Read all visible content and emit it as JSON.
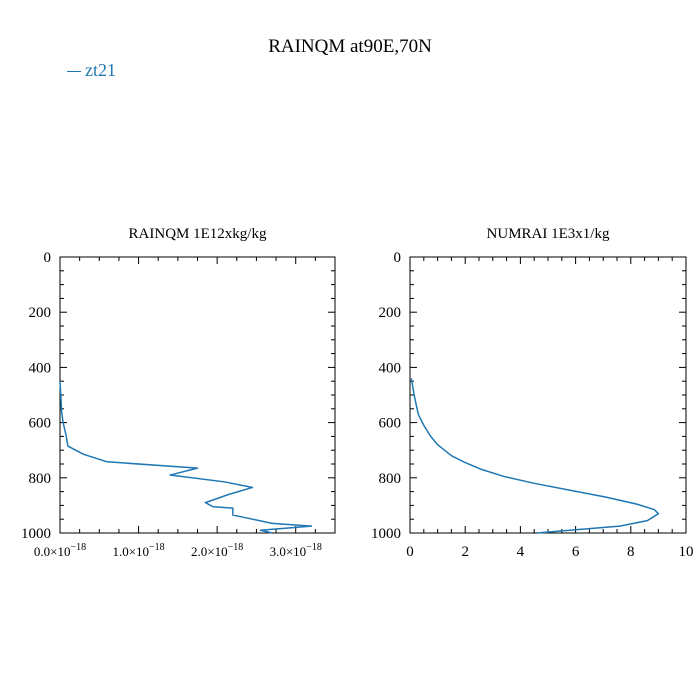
{
  "title": "RAINQM at90E,70N",
  "legend": [
    {
      "name": "zt21",
      "color": "#1f77b4"
    }
  ],
  "chart_data": [
    {
      "type": "line",
      "title": "RAINQM  1E12xkg/kg",
      "xlim": [
        0,
        3.5e-18
      ],
      "ylim": [
        1000,
        0
      ],
      "y_inverted": true,
      "x_ticks": [
        0,
        1e-18,
        2e-18,
        3e-18
      ],
      "x_tick_labels": [
        {
          "mant": "0.0×10",
          "exp": "−18"
        },
        {
          "mant": "1.0×10",
          "exp": "−18"
        },
        {
          "mant": "2.0×10",
          "exp": "−18"
        },
        {
          "mant": "3.0×10",
          "exp": "−18"
        }
      ],
      "y_ticks": [
        0,
        200,
        400,
        600,
        800,
        1000
      ],
      "y_tick_labels": [
        "0",
        "200",
        "400",
        "600",
        "800",
        "1000"
      ],
      "series": [
        {
          "name": "zt21",
          "color": "#1f77b4",
          "points": [
            [
              0.0,
              450
            ],
            [
              1e-20,
              500
            ],
            [
              2e-20,
              560
            ],
            [
              4e-20,
              600
            ],
            [
              8e-20,
              650
            ],
            [
              1e-19,
              685
            ],
            [
              3e-19,
              715
            ],
            [
              6e-19,
              742
            ],
            [
              1.75e-18,
              765
            ],
            [
              1.4e-18,
              790
            ],
            [
              2.1e-18,
              815
            ],
            [
              2.45e-18,
              835
            ],
            [
              2.15e-18,
              860
            ],
            [
              1.85e-18,
              890
            ],
            [
              1.95e-18,
              905
            ],
            [
              2.2e-18,
              910
            ],
            [
              2.2e-18,
              935
            ],
            [
              2.45e-18,
              950
            ],
            [
              2.7e-18,
              965
            ],
            [
              3.2e-18,
              975
            ],
            [
              2.55e-18,
              990
            ],
            [
              2.7e-18,
              1000
            ]
          ]
        }
      ]
    },
    {
      "type": "line",
      "title": "NUMRAI  1E3x1/kg",
      "xlim": [
        0,
        10
      ],
      "ylim": [
        1000,
        0
      ],
      "y_inverted": true,
      "x_ticks": [
        0,
        2,
        4,
        6,
        8,
        10
      ],
      "x_tick_labels": [
        "0",
        "2",
        "4",
        "6",
        "8",
        "10"
      ],
      "y_ticks": [
        0,
        200,
        400,
        600,
        800,
        1000
      ],
      "y_tick_labels": [
        "0",
        "200",
        "400",
        "600",
        "800",
        "1000"
      ],
      "series": [
        {
          "name": "zt21",
          "color": "#1f77b4",
          "points": [
            [
              0.05,
              440
            ],
            [
              0.15,
              500
            ],
            [
              0.3,
              570
            ],
            [
              0.5,
              610
            ],
            [
              0.75,
              650
            ],
            [
              1.0,
              680
            ],
            [
              1.5,
              720
            ],
            [
              2.0,
              745
            ],
            [
              2.6,
              770
            ],
            [
              3.4,
              795
            ],
            [
              4.5,
              820
            ],
            [
              5.8,
              845
            ],
            [
              7.1,
              870
            ],
            [
              8.2,
              895
            ],
            [
              8.85,
              915
            ],
            [
              9.0,
              930
            ],
            [
              8.6,
              955
            ],
            [
              7.6,
              975
            ],
            [
              6.0,
              988
            ],
            [
              4.6,
              1000
            ]
          ]
        }
      ]
    }
  ]
}
